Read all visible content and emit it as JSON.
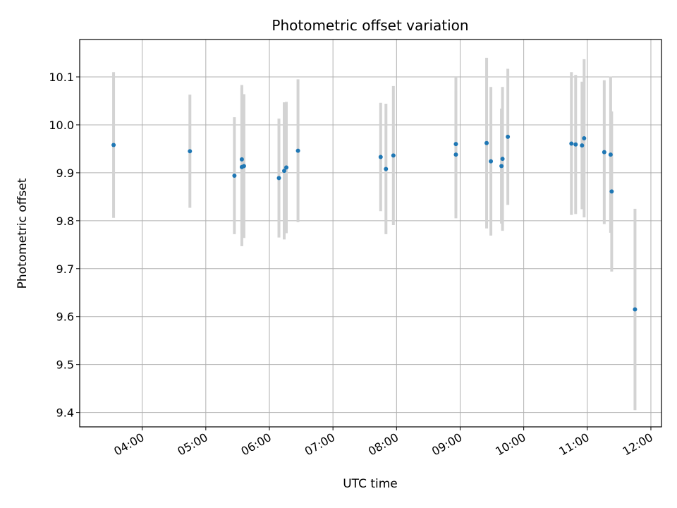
{
  "chart_data": {
    "type": "scatter",
    "title": "Photometric offset variation",
    "xlabel": "UTC time",
    "ylabel": "Photometric offset",
    "x_ticks": [
      "04:00",
      "05:00",
      "06:00",
      "07:00",
      "08:00",
      "09:00",
      "10:00",
      "11:00",
      "12:00"
    ],
    "y_ticks": [
      "9.4",
      "9.5",
      "9.6",
      "9.7",
      "9.8",
      "9.9",
      "10.0",
      "10.1"
    ],
    "xlim": [
      "03:01",
      "12:10"
    ],
    "ylim": [
      9.37,
      10.178
    ],
    "grid": true,
    "colors": {
      "point": "#1f77b4",
      "errorbar": "#d3d3d3",
      "grid": "#b0b0b0"
    },
    "points": [
      {
        "x": "03:33",
        "y": 9.958,
        "err": 0.152
      },
      {
        "x": "04:45",
        "y": 9.945,
        "err": 0.118
      },
      {
        "x": "05:27",
        "y": 9.894,
        "err": 0.122
      },
      {
        "x": "05:34",
        "y": 9.928,
        "err": 0.155
      },
      {
        "x": "05:34",
        "y": 9.912,
        "err": 0.165
      },
      {
        "x": "05:36",
        "y": 9.914,
        "err": 0.15
      },
      {
        "x": "06:09",
        "y": 9.889,
        "err": 0.124
      },
      {
        "x": "06:14",
        "y": 9.904,
        "err": 0.143
      },
      {
        "x": "06:16",
        "y": 9.911,
        "err": 0.137
      },
      {
        "x": "06:27",
        "y": 9.946,
        "err": 0.149
      },
      {
        "x": "07:45",
        "y": 9.933,
        "err": 0.113
      },
      {
        "x": "07:50",
        "y": 9.908,
        "err": 0.136
      },
      {
        "x": "07:57",
        "y": 9.936,
        "err": 0.145
      },
      {
        "x": "08:56",
        "y": 9.96,
        "err": 0.14
      },
      {
        "x": "08:56",
        "y": 9.938,
        "err": 0.133
      },
      {
        "x": "09:25",
        "y": 9.962,
        "err": 0.178
      },
      {
        "x": "09:29",
        "y": 9.924,
        "err": 0.155
      },
      {
        "x": "09:39",
        "y": 9.914,
        "err": 0.12
      },
      {
        "x": "09:40",
        "y": 9.929,
        "err": 0.15
      },
      {
        "x": "09:45",
        "y": 9.975,
        "err": 0.142
      },
      {
        "x": "10:45",
        "y": 9.961,
        "err": 0.149
      },
      {
        "x": "10:49",
        "y": 9.959,
        "err": 0.145
      },
      {
        "x": "10:55",
        "y": 9.957,
        "err": 0.133
      },
      {
        "x": "10:57",
        "y": 9.972,
        "err": 0.165
      },
      {
        "x": "11:16",
        "y": 9.943,
        "err": 0.15
      },
      {
        "x": "11:22",
        "y": 9.938,
        "err": 0.163
      },
      {
        "x": "11:23",
        "y": 9.861,
        "err": 0.167
      },
      {
        "x": "11:45",
        "y": 9.615,
        "err": 0.21
      }
    ]
  }
}
